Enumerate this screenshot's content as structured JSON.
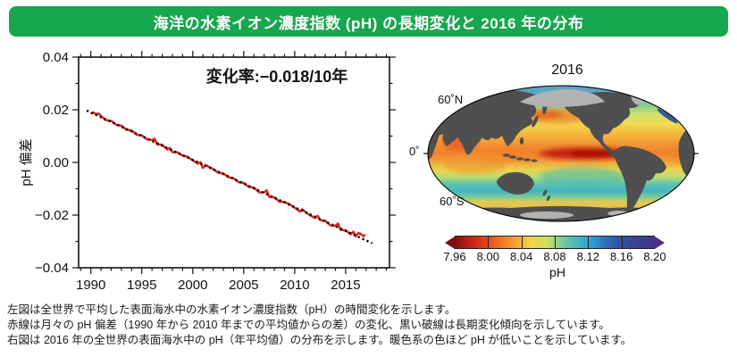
{
  "header": {
    "title": "海洋の水素イオン濃度指数 (pH) の長期変化と 2016 年の分布",
    "bg_color": "#17a74e",
    "text_color": "#ffffff"
  },
  "chart_data": {
    "type": "line",
    "ylabel": "pH 偏差",
    "annotation": "変化率:−0.018/10年",
    "trend_rate_per_decade": -0.018,
    "xlim": [
      1988.8,
      2019.3
    ],
    "ylim": [
      -0.04,
      0.04
    ],
    "x_ticks": [
      1990,
      1995,
      2000,
      2005,
      2010,
      2015
    ],
    "x_tick_labels": [
      "1990",
      "1995",
      "2000",
      "2005",
      "2010",
      "2015"
    ],
    "x_minor_step": 1,
    "y_ticks": [
      0.04,
      0.02,
      0,
      -0.02,
      -0.04
    ],
    "y_tick_labels": [
      "0.04",
      "0.02",
      "0.00",
      "−0.02",
      "−0.04"
    ],
    "y_minor_step": 0.01,
    "grid": false,
    "series": [
      {
        "name": "月々のpH偏差",
        "color": "#e3231c",
        "style": "solid",
        "x": [
          1990.0,
          1990.25,
          1990.5,
          1990.75,
          1991.0,
          1991.5,
          1992.0,
          1992.5,
          1993.0,
          1993.5,
          1994.0,
          1994.5,
          1995.0,
          1995.5,
          1996.0,
          1996.25,
          1996.5,
          1997.0,
          1997.5,
          1997.75,
          1998.0,
          1998.5,
          1999.0,
          1999.5,
          2000.0,
          2000.5,
          2000.75,
          2001.0,
          2001.25,
          2001.5,
          2002.0,
          2002.5,
          2003.0,
          2003.5,
          2004.0,
          2004.5,
          2005.0,
          2005.5,
          2006.0,
          2006.5,
          2007.0,
          2007.25,
          2007.5,
          2008.0,
          2008.5,
          2009.0,
          2009.5,
          2010.0,
          2010.5,
          2010.75,
          2011.0,
          2011.5,
          2012.0,
          2012.25,
          2012.5,
          2013.0,
          2013.5,
          2014.0,
          2014.25,
          2014.5,
          2015.0,
          2015.5,
          2015.75,
          2016.0,
          2016.25,
          2016.5,
          2016.75,
          2016.92
        ],
        "y": [
          0.0185,
          0.019,
          0.0183,
          0.0186,
          0.0176,
          0.016,
          0.0158,
          0.0143,
          0.0139,
          0.0124,
          0.0121,
          0.0105,
          0.0103,
          0.0088,
          0.0085,
          0.009,
          0.0069,
          0.0067,
          0.0049,
          0.0055,
          0.0039,
          0.0038,
          0.0026,
          0.0021,
          0.0008,
          -0.0005,
          0.0001,
          -0.0021,
          -0.0009,
          -0.0015,
          -0.0025,
          -0.0039,
          -0.0042,
          -0.0056,
          -0.006,
          -0.0075,
          -0.0078,
          -0.0093,
          -0.0096,
          -0.0113,
          -0.0114,
          -0.0106,
          -0.0131,
          -0.0132,
          -0.0149,
          -0.015,
          -0.0159,
          -0.0172,
          -0.0186,
          -0.0178,
          -0.0187,
          -0.0201,
          -0.0211,
          -0.0203,
          -0.0219,
          -0.0222,
          -0.0239,
          -0.0241,
          -0.0232,
          -0.0256,
          -0.0258,
          -0.0273,
          -0.0263,
          -0.0281,
          -0.0268,
          -0.0272,
          -0.028,
          -0.0274
        ]
      },
      {
        "name": "長期変化傾向",
        "color": "#000000",
        "style": "dotted",
        "x": [
          1989.6,
          2017.6
        ],
        "y": [
          0.0197,
          -0.0307
        ]
      }
    ]
  },
  "map": {
    "title": "2016",
    "lat_labels": [
      "60˚N",
      "0˚",
      "60˚S"
    ],
    "land_color": "#4f4f4f",
    "ice_color": "#b2b2b2",
    "colorbar": {
      "label": "pH",
      "ticks": [
        "7.96",
        "8.00",
        "8.04",
        "8.08",
        "8.12",
        "8.16",
        "8.20"
      ],
      "gradient": [
        {
          "o": 0,
          "c": "#7a1013"
        },
        {
          "o": 0.06,
          "c": "#b81c15"
        },
        {
          "o": 0.14,
          "c": "#d93c1b"
        },
        {
          "o": 0.22,
          "c": "#ee6e22"
        },
        {
          "o": 0.3,
          "c": "#f49e33"
        },
        {
          "o": 0.38,
          "c": "#f2d348"
        },
        {
          "o": 0.46,
          "c": "#cfe05c"
        },
        {
          "o": 0.52,
          "c": "#8fd08c"
        },
        {
          "o": 0.58,
          "c": "#52c0ae"
        },
        {
          "o": 0.645,
          "c": "#38aec6"
        },
        {
          "o": 0.7,
          "c": "#2e96d0"
        },
        {
          "o": 0.76,
          "c": "#2f6cb8"
        },
        {
          "o": 0.83,
          "c": "#31519e"
        },
        {
          "o": 0.92,
          "c": "#3a3f92"
        },
        {
          "o": 1,
          "c": "#44338c"
        }
      ],
      "arrow_left_color": "#7a1013",
      "arrow_right_color": "#4c2d86"
    }
  },
  "caption": {
    "lines": [
      "左図は全世界で平均した表面海水中の水素イオン濃度指数（pH）の時間変化を示します。",
      "赤線は月々の pH 偏差（1990 年から 2010 年までの平均値からの差）の変化、黒い破線は長期変化傾向を示しています。",
      "右図は 2016 年の全世界の表面海水中の pH（年平均値）の分布を示します。暖色系の色ほど pH が低いことを示しています。"
    ]
  }
}
